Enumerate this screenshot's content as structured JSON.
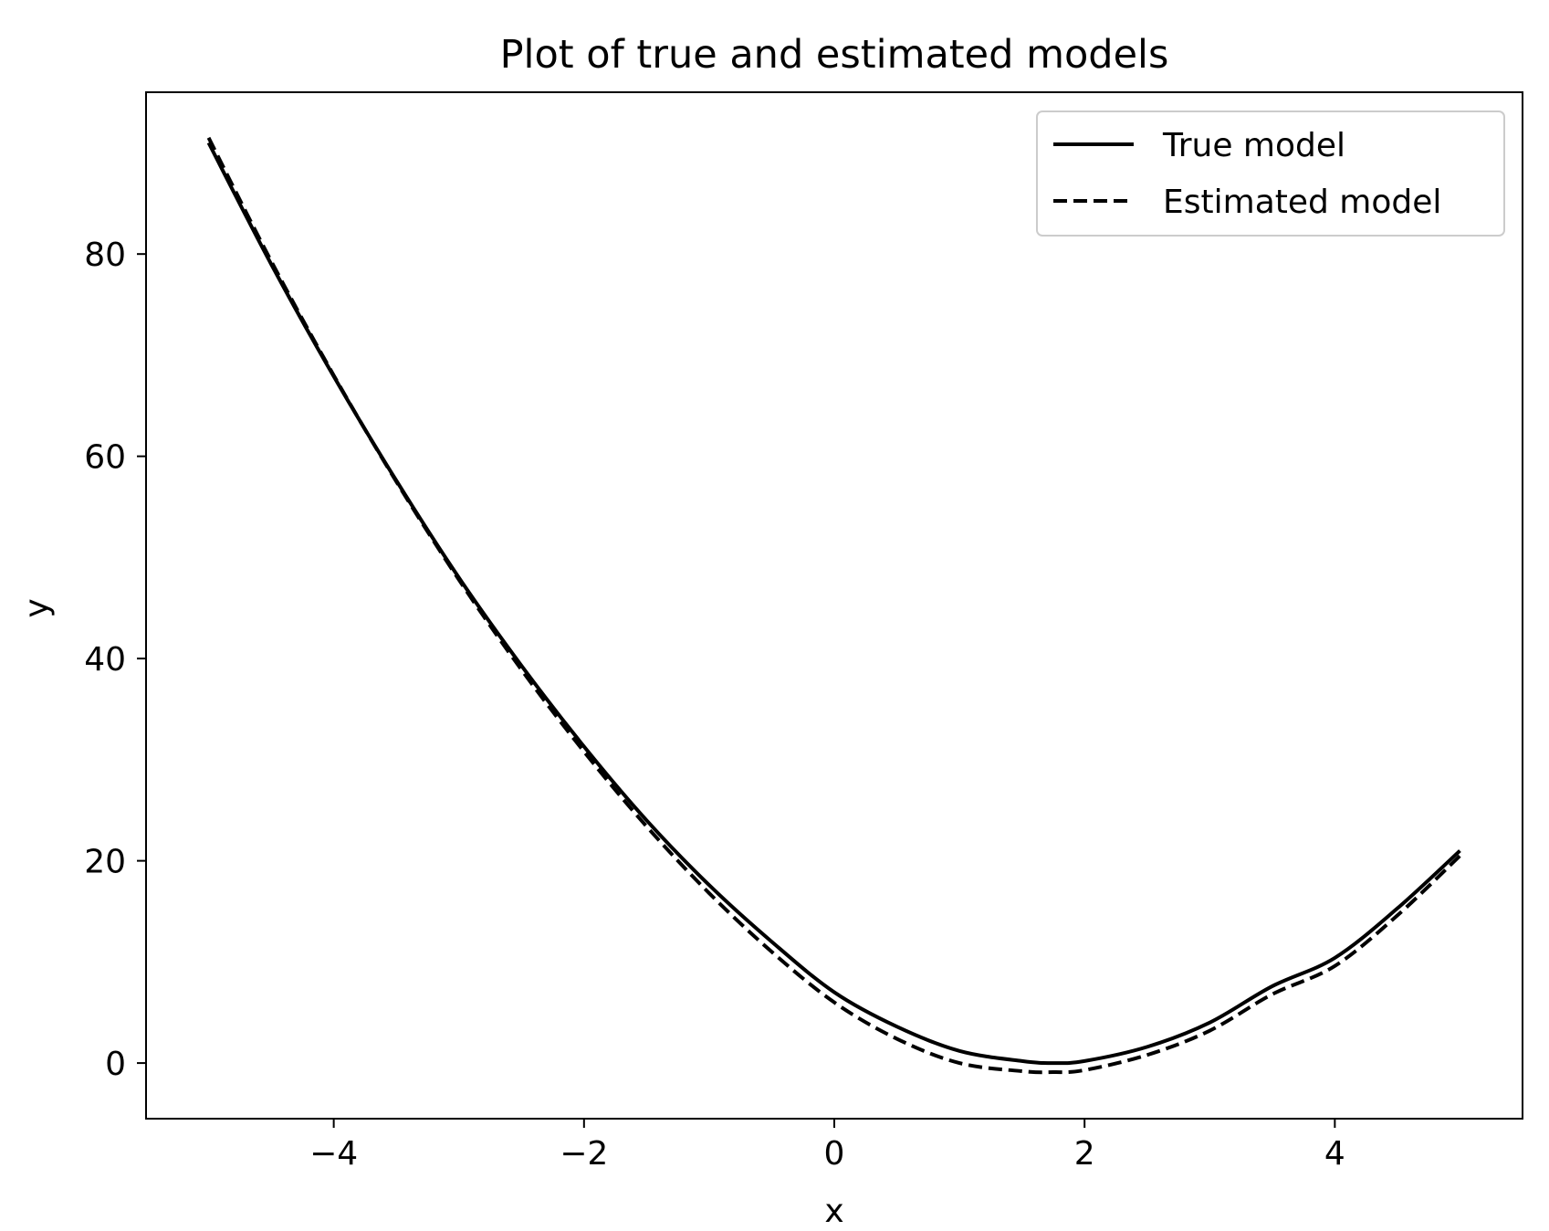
{
  "chart_data": {
    "type": "line",
    "title": "Plot of true and estimated models",
    "xlabel": "x",
    "ylabel": "y",
    "xlim": [
      -5.5,
      5.5
    ],
    "ylim": [
      -5.5,
      96
    ],
    "x_ticks": [
      -4,
      -2,
      0,
      2,
      4
    ],
    "x_tick_labels": [
      "−4",
      "−2",
      "0",
      "2",
      "4"
    ],
    "y_ticks": [
      0,
      20,
      40,
      60,
      80
    ],
    "y_tick_labels": [
      "0",
      "20",
      "40",
      "60",
      "80"
    ],
    "grid": false,
    "legend_position": "top-right",
    "x": [
      -5,
      -4.5,
      -4,
      -3.5,
      -3,
      -2.5,
      -2,
      -1.5,
      -1,
      -0.5,
      0,
      0.5,
      1,
      1.5,
      1.75,
      2,
      2.5,
      3,
      3.5,
      4,
      4.5,
      5
    ],
    "series": [
      {
        "name": "True model",
        "style": "solid",
        "color": "#000000",
        "values": [
          91.0,
          79.0,
          67.9,
          57.6,
          48.0,
          39.3,
          31.3,
          24.0,
          17.6,
          12.0,
          7.0,
          3.6,
          1.2,
          0.2,
          0.0,
          0.2,
          1.6,
          4.0,
          7.6,
          10.4,
          15.3,
          21.0
        ]
      },
      {
        "name": "Estimated model",
        "style": "dashed",
        "color": "#000000",
        "values": [
          91.5,
          79.3,
          68.0,
          57.5,
          47.8,
          38.9,
          30.8,
          23.4,
          16.8,
          11.0,
          6.0,
          2.4,
          0.0,
          -0.8,
          -0.9,
          -0.7,
          0.8,
          3.2,
          6.8,
          9.6,
          14.6,
          20.5
        ]
      }
    ]
  }
}
